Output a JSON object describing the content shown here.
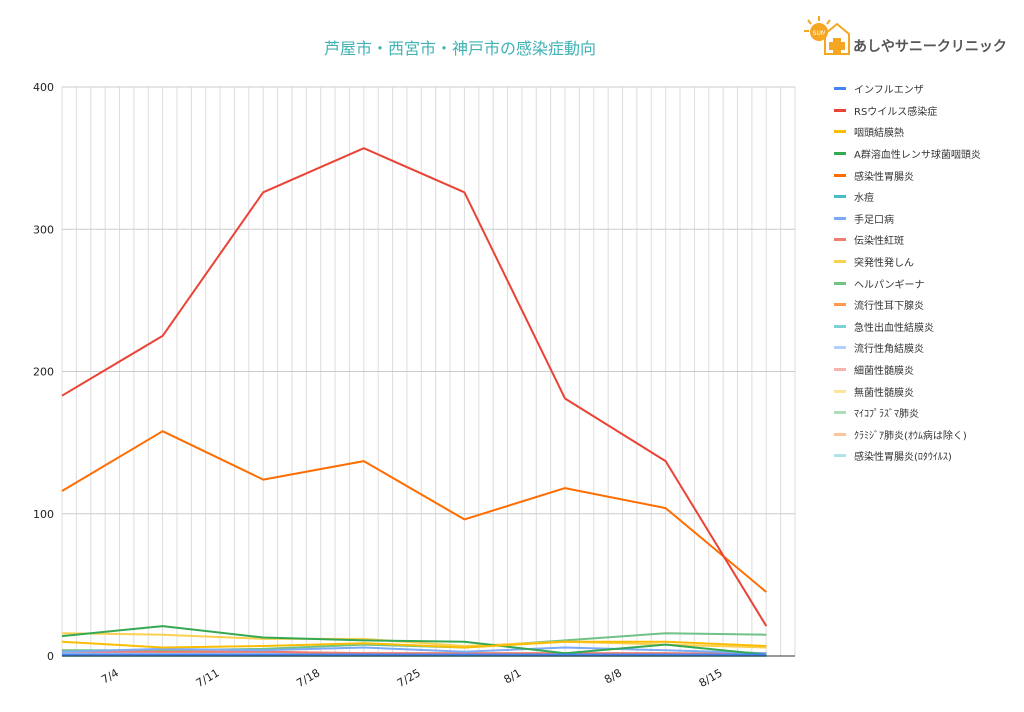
{
  "title": "芦屋市・西宮市・神戸市の感染症動向",
  "logo": {
    "brand_text": "あしやサニークリニック",
    "badge_text": "SUN",
    "icon": "sun-house-cross-icon"
  },
  "chart_data": {
    "type": "line",
    "x": [
      "6/30",
      "7/7",
      "7/14",
      "7/21",
      "7/28",
      "8/4",
      "8/11",
      "8/18"
    ],
    "x_tick_labels": [
      "7/4",
      "7/11",
      "7/18",
      "7/25",
      "8/1",
      "8/8",
      "8/15"
    ],
    "x_tick_dates": [
      "7/4",
      "7/11",
      "7/18",
      "7/25",
      "8/1",
      "8/8",
      "8/15"
    ],
    "x_range": [
      "6/30",
      "8/20"
    ],
    "ylim": [
      0,
      400
    ],
    "y_ticks": [
      0,
      100,
      200,
      300,
      400
    ],
    "grid": true,
    "legend_position": "right",
    "series": [
      {
        "name": "インフルエンザ",
        "color": "#4285f4",
        "values": [
          1,
          1,
          1,
          1,
          1,
          1,
          1,
          1
        ]
      },
      {
        "name": "RSウイルス感染症",
        "color": "#ea4335",
        "values": [
          183,
          225,
          326,
          357,
          326,
          181,
          137,
          21
        ]
      },
      {
        "name": "咽頭結膜熱",
        "color": "#fbbc04",
        "values": [
          10,
          6,
          7,
          9,
          6,
          10,
          10,
          7
        ]
      },
      {
        "name": "A群溶血性レンサ球菌咽頭炎",
        "color": "#34a853",
        "values": [
          14,
          21,
          13,
          11,
          10,
          2,
          8,
          1
        ]
      },
      {
        "name": "感染性胃腸炎",
        "color": "#ff6d01",
        "values": [
          116,
          158,
          124,
          137,
          96,
          118,
          104,
          45
        ]
      },
      {
        "name": "水痘",
        "color": "#46bdc6",
        "values": [
          1,
          1,
          1,
          1,
          1,
          1,
          1,
          1
        ]
      },
      {
        "name": "手足口病",
        "color": "#7baaf7",
        "values": [
          3,
          5,
          4,
          6,
          3,
          6,
          4,
          2
        ]
      },
      {
        "name": "伝染性紅斑",
        "color": "#f07b72",
        "values": [
          3,
          3,
          3,
          2,
          2,
          2,
          2,
          2
        ]
      },
      {
        "name": "突発性発しん",
        "color": "#fcd04f",
        "values": [
          16,
          15,
          12,
          12,
          7,
          10,
          8,
          6
        ]
      },
      {
        "name": "ヘルパンギーナ",
        "color": "#71c287",
        "values": [
          4,
          4,
          5,
          8,
          6,
          11,
          16,
          15
        ]
      },
      {
        "name": "流行性耳下腺炎",
        "color": "#ff994d",
        "values": [
          4,
          3,
          3,
          2,
          2,
          2,
          2,
          1
        ]
      },
      {
        "name": "急性出血性結膜炎",
        "color": "#7ed1d7",
        "values": [
          0,
          0,
          0,
          0,
          0,
          0,
          0,
          0
        ]
      },
      {
        "name": "流行性角結膜炎",
        "color": "#b3cefb",
        "values": [
          2,
          2,
          2,
          2,
          1,
          2,
          1,
          1
        ]
      },
      {
        "name": "細菌性髄膜炎",
        "color": "#f7b4ae",
        "values": [
          0,
          0,
          0,
          0,
          0,
          0,
          0,
          0
        ]
      },
      {
        "name": "無菌性髄膜炎",
        "color": "#fde49b",
        "values": [
          0,
          0,
          0,
          0,
          0,
          0,
          0,
          0
        ]
      },
      {
        "name": "ﾏｲｺﾌﾟﾗｽﾞﾏ肺炎",
        "color": "#aedcba",
        "values": [
          0,
          0,
          0,
          0,
          0,
          0,
          0,
          0
        ]
      },
      {
        "name": "ｸﾗﾐｼﾞｱ肺炎(ｵｳﾑ病は除く)",
        "color": "#ffc599",
        "values": [
          0,
          0,
          0,
          0,
          0,
          0,
          0,
          0
        ]
      },
      {
        "name": "感染性胃腸炎(ﾛﾀｳｲﾙｽ)",
        "color": "#b1e3e7",
        "values": [
          0,
          0,
          0,
          0,
          0,
          0,
          0,
          0
        ]
      }
    ]
  }
}
